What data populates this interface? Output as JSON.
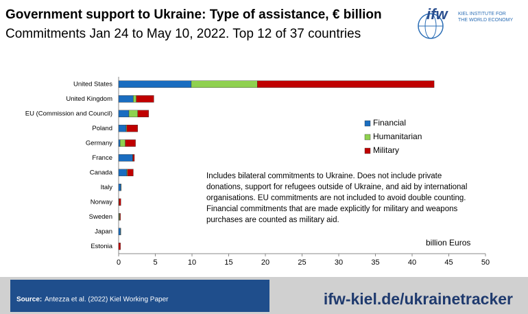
{
  "chart_data": {
    "type": "stacked-barh",
    "title": "Government support to Ukraine: Type of assistance, € billion",
    "subtitle": "Commitments Jan 24 to May 10, 2022. Top 12 of 37 countries",
    "logo": {
      "mark": "ifw",
      "line1": "KIEL INSTITUTE FOR",
      "line2": "THE WORLD ECONOMY"
    },
    "categories": [
      "United States",
      "United Kingdom",
      "EU (Commission and Council)",
      "Poland",
      "Germany",
      "France",
      "Canada",
      "Italy",
      "Norway",
      "Sweden",
      "Japan",
      "Estonia"
    ],
    "series": [
      {
        "name": "Financial",
        "color": "#1a6dc0",
        "values": [
          9.9,
          2.0,
          1.4,
          1.0,
          0.2,
          1.9,
          1.1,
          0.3,
          0,
          0.05,
          0.25,
          0
        ]
      },
      {
        "name": "Humanitarian",
        "color": "#8fd14f",
        "values": [
          9.0,
          0.4,
          1.2,
          0.1,
          0.7,
          0.05,
          0.1,
          0.05,
          0.05,
          0.1,
          0.05,
          0
        ]
      },
      {
        "name": "Military",
        "color": "#c00000",
        "values": [
          24.1,
          2.4,
          1.5,
          1.5,
          1.4,
          0.2,
          0.8,
          0,
          0.25,
          0.1,
          0,
          0.25
        ]
      }
    ],
    "xlim": [
      0,
      50
    ],
    "xticks": [
      0,
      5,
      10,
      15,
      20,
      25,
      30,
      35,
      40,
      45,
      50
    ],
    "x_label": "billion Euros",
    "note": [
      "Includes bilateral commitments to Ukraine. Does not include private",
      "donations, support for refugees outside of Ukraine, and aid by international",
      "organisations. EU commitments are not included to avoid double counting.",
      "Financial commitments that are made explicitly for military and weapons",
      "purchases are counted as military aid."
    ],
    "source_label": "Source:",
    "source": "Antezza et al. (2022) Kiel Working Paper",
    "url": "ifw-kiel.de/ukrainetracker"
  }
}
